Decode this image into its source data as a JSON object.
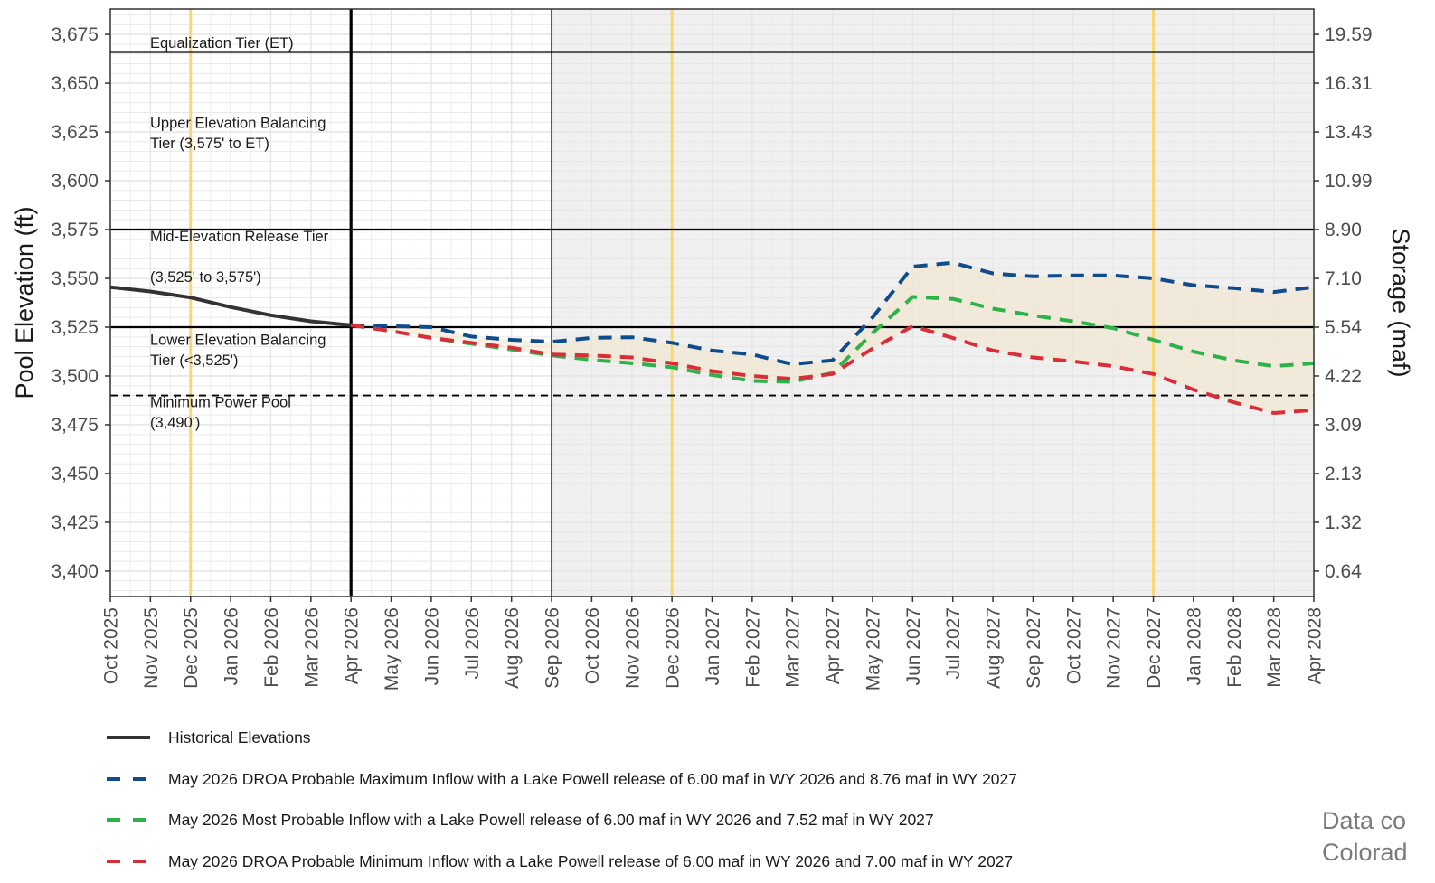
{
  "chart_data": {
    "type": "line",
    "y_left": {
      "label": "Pool Elevation (ft)",
      "ylim": [
        3387,
        3688
      ],
      "ticks": [
        {
          "value": 3400,
          "label": "3,400"
        },
        {
          "value": 3425,
          "label": "3,425"
        },
        {
          "value": 3450,
          "label": "3,450"
        },
        {
          "value": 3475,
          "label": "3,475"
        },
        {
          "value": 3500,
          "label": "3,500"
        },
        {
          "value": 3525,
          "label": "3,525"
        },
        {
          "value": 3550,
          "label": "3,550"
        },
        {
          "value": 3575,
          "label": "3,575"
        },
        {
          "value": 3600,
          "label": "3,600"
        },
        {
          "value": 3625,
          "label": "3,625"
        },
        {
          "value": 3650,
          "label": "3,650"
        },
        {
          "value": 3675,
          "label": "3,675"
        }
      ]
    },
    "y_right": {
      "label": "Storage (maf)",
      "ticks": [
        "0.64",
        "1.32",
        "2.13",
        "3.09",
        "4.22",
        "5.54",
        "7.10",
        "8.90",
        "10.99",
        "13.43",
        "16.31",
        "19.59"
      ]
    },
    "x_labels": [
      "Oct 2025",
      "Nov 2025",
      "Dec 2025",
      "Jan 2026",
      "Feb 2026",
      "Mar 2026",
      "Apr 2026",
      "May 2026",
      "Jun 2026",
      "Jul 2026",
      "Aug 2026",
      "Sep 2026",
      "Oct 2026",
      "Nov 2026",
      "Dec 2026",
      "Jan 2027",
      "Feb 2027",
      "Mar 2027",
      "Apr 2027",
      "May 2027",
      "Jun 2027",
      "Jul 2027",
      "Aug 2027",
      "Sep 2027",
      "Oct 2027",
      "Nov 2027",
      "Dec 2027",
      "Jan 2028",
      "Feb 2028",
      "Mar 2028",
      "Apr 2028"
    ],
    "grid": true,
    "shaded_region": {
      "from": "Sep 2026",
      "to": "Apr 2028"
    },
    "reference_lines": {
      "tiers": [
        {
          "value": 3666,
          "style": "solid"
        },
        {
          "value": 3575,
          "style": "solid"
        },
        {
          "value": 3525,
          "style": "solid"
        },
        {
          "value": 3490,
          "style": "dashed"
        }
      ],
      "vertical_current": "Apr 2026",
      "vertical_december": [
        "Dec 2025",
        "Dec 2026",
        "Dec 2027"
      ],
      "vertical_wy_start": "Sep 2026"
    },
    "tier_labels": [
      {
        "lines": [
          "Equalization Tier (ET)"
        ],
        "at": 3668
      },
      {
        "lines": [
          "Upper Elevation Balancing",
          "Tier (3,575' to ET)"
        ],
        "at": 3627
      },
      {
        "lines": [
          "Mid-Elevation Release Tier",
          "",
          "(3,525' to 3,575')"
        ],
        "at": 3569
      },
      {
        "lines": [
          "Lower Elevation Balancing",
          "Tier (<3,525')"
        ],
        "at": 3516
      },
      {
        "lines": [
          "Minimum Power Pool",
          "(3,490')"
        ],
        "at": 3484
      }
    ],
    "series": [
      {
        "name": "Historical Elevations",
        "style": "solid",
        "color": "#333333",
        "start": 0,
        "values": [
          3545.5,
          3543.3,
          3540.2,
          3535.3,
          3531.1,
          3528.0,
          3526.0
        ]
      },
      {
        "name": "May 2026 DROA Probable Maximum Inflow with a Lake Powell release of 6.00 maf in WY 2026 and 8.76 maf in WY 2027",
        "style": "dashed",
        "color": "#0f4c8c",
        "start": 6,
        "values": [
          3526.0,
          3525.5,
          3525.0,
          3520.2,
          3518.5,
          3517.5,
          3519.5,
          3519.8,
          3517.0,
          3513.0,
          3511.0,
          3506.0,
          3508.0,
          3530.0,
          3556.0,
          3558.0,
          3552.5,
          3551.0,
          3551.5,
          3551.5,
          3550.0,
          3546.5,
          3545.0,
          3543.0,
          3545.5
        ]
      },
      {
        "name": "May 2026 Most Probable Inflow with a Lake Powell release of 6.00 maf in WY 2026 and 7.52 maf in WY 2027",
        "style": "dashed",
        "color": "#2db24a",
        "start": 6,
        "values": [
          3526.0,
          3523.0,
          3519.5,
          3516.5,
          3513.5,
          3510.5,
          3508.3,
          3506.5,
          3504.5,
          3500.5,
          3497.5,
          3497.0,
          3501.5,
          3522.0,
          3540.5,
          3539.5,
          3534.5,
          3531.0,
          3528.0,
          3524.5,
          3518.5,
          3512.5,
          3508.0,
          3505.0,
          3506.5
        ]
      },
      {
        "name": "May 2026 DROA Probable Minimum Inflow with a Lake Powell release of 6.00 maf in WY 2026 and 7.00 maf in WY 2027",
        "style": "dashed",
        "color": "#d92e3a",
        "start": 6,
        "values": [
          3526.0,
          3523.0,
          3519.5,
          3517.0,
          3514.5,
          3511.0,
          3510.5,
          3509.5,
          3506.5,
          3502.5,
          3500.0,
          3498.5,
          3501.0,
          3514.0,
          3525.5,
          3519.5,
          3513.0,
          3509.5,
          3507.5,
          3505.0,
          3501.0,
          3493.0,
          3486.5,
          3481.0,
          3482.5
        ]
      }
    ],
    "footer_note": [
      "Data co",
      "Colorad"
    ]
  }
}
